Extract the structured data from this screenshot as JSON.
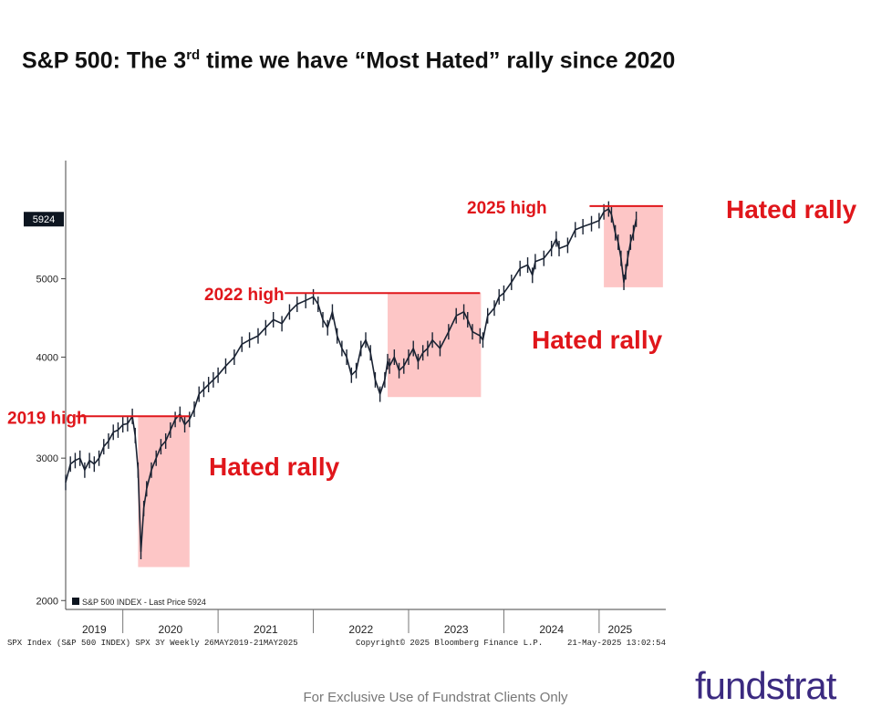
{
  "title_main": "S&P 500: The 3",
  "title_sup": "rd",
  "title_rest": " time we have “Most Hated” rally since 2020",
  "footer": "For Exclusive Use of Fundstrat Clients Only",
  "logo": "fundstrat",
  "chart_data": {
    "type": "line",
    "series": [
      {
        "name": "SPX Index",
        "x": [
          2019.4,
          2019.45,
          2019.5,
          2019.55,
          2019.6,
          2019.65,
          2019.7,
          2019.75,
          2019.8,
          2019.85,
          2019.9,
          2019.95,
          2020.0,
          2020.05,
          2020.1,
          2020.13,
          2020.16,
          2020.19,
          2020.22,
          2020.25,
          2020.3,
          2020.35,
          2020.4,
          2020.45,
          2020.5,
          2020.55,
          2020.6,
          2020.65,
          2020.7,
          2020.75,
          2020.8,
          2020.85,
          2020.9,
          2020.95,
          2021.0,
          2021.08,
          2021.17,
          2021.25,
          2021.33,
          2021.42,
          2021.5,
          2021.58,
          2021.67,
          2021.75,
          2021.83,
          2021.92,
          2022.0,
          2022.05,
          2022.1,
          2022.15,
          2022.2,
          2022.25,
          2022.3,
          2022.35,
          2022.4,
          2022.45,
          2022.5,
          2022.55,
          2022.6,
          2022.65,
          2022.7,
          2022.75,
          2022.78,
          2022.8,
          2022.85,
          2022.9,
          2022.95,
          2023.0,
          2023.05,
          2023.1,
          2023.15,
          2023.2,
          2023.25,
          2023.33,
          2023.42,
          2023.5,
          2023.58,
          2023.62,
          2023.67,
          2023.75,
          2023.78,
          2023.83,
          2023.9,
          2023.95,
          2024.0,
          2024.08,
          2024.17,
          2024.25,
          2024.3,
          2024.33,
          2024.42,
          2024.5,
          2024.55,
          2024.58,
          2024.67,
          2024.75,
          2024.83,
          2024.92,
          2025.0,
          2025.05,
          2025.1,
          2025.13,
          2025.17,
          2025.2,
          2025.23,
          2025.26,
          2025.28,
          2025.3,
          2025.33,
          2025.36,
          2025.39
        ],
        "values": [
          2800,
          2950,
          2980,
          3000,
          2900,
          2980,
          2950,
          3000,
          3100,
          3150,
          3230,
          3250,
          3300,
          3310,
          3380,
          3200,
          2900,
          2300,
          2600,
          2750,
          2900,
          3000,
          3100,
          3150,
          3250,
          3350,
          3400,
          3300,
          3350,
          3450,
          3600,
          3650,
          3700,
          3750,
          3800,
          3900,
          4000,
          4150,
          4200,
          4250,
          4350,
          4450,
          4400,
          4550,
          4650,
          4700,
          4750,
          4650,
          4450,
          4350,
          4550,
          4250,
          4100,
          4000,
          3800,
          3850,
          4100,
          4200,
          4050,
          3750,
          3600,
          3750,
          3950,
          3900,
          4000,
          3850,
          3900,
          4000,
          4100,
          3950,
          4050,
          4100,
          4200,
          4100,
          4300,
          4500,
          4550,
          4450,
          4300,
          4250,
          4200,
          4500,
          4600,
          4750,
          4800,
          4950,
          5150,
          5200,
          5050,
          5250,
          5300,
          5450,
          5600,
          5450,
          5500,
          5750,
          5800,
          5850,
          5900,
          6050,
          6100,
          6000,
          5700,
          5550,
          5300,
          4950,
          5100,
          5300,
          5550,
          5700,
          5924
        ]
      }
    ],
    "last_price_label": "5924",
    "yticks": [
      2000,
      3000,
      4000,
      5000
    ],
    "yscale": "log",
    "ylim": [
      1950,
      7000
    ],
    "xlim": [
      2019.4,
      2025.7
    ],
    "xtick_labels": [
      {
        "label": "2019",
        "at": 2019.7
      },
      {
        "label": "2020",
        "at": 2020.5
      },
      {
        "label": "2021",
        "at": 2021.5
      },
      {
        "label": "2022",
        "at": 2022.5
      },
      {
        "label": "2023",
        "at": 2023.5
      },
      {
        "label": "2024",
        "at": 2024.5
      },
      {
        "label": "2025",
        "at": 2025.22
      }
    ],
    "year_dividers": [
      2020.0,
      2021.0,
      2022.0,
      2023.0,
      2024.0,
      2025.0
    ],
    "legend": "S&P 500 INDEX - Last Price 5924",
    "footer_left": "SPX Index (S&P 500 INDEX) SPX 3Y  Weekly 26MAY2019-21MAY2025",
    "footer_center": "Copyright© 2025 Bloomberg Finance L.P.",
    "footer_right": "21-May-2025 13:02:54",
    "highs": [
      {
        "label": "2019 high",
        "level": 3380,
        "x_start": 2019.2,
        "x_end": 2020.7
      },
      {
        "label": "2022 high",
        "level": 4800,
        "x_start": 2021.7,
        "x_end": 2023.75
      },
      {
        "label": "2025 high",
        "level": 6150,
        "x_start": 2024.9,
        "x_end": 2025.67
      }
    ],
    "rallies": [
      {
        "label": "Hated rally",
        "x0": 2020.16,
        "x1": 2020.7,
        "y0": 2200,
        "y1": 3380
      },
      {
        "label": "Hated rally",
        "x0": 2022.78,
        "x1": 2023.76,
        "y0": 3570,
        "y1": 4800
      },
      {
        "label": "Hated rally",
        "x0": 2025.05,
        "x1": 2025.67,
        "y0": 4880,
        "y1": 6150
      }
    ]
  }
}
